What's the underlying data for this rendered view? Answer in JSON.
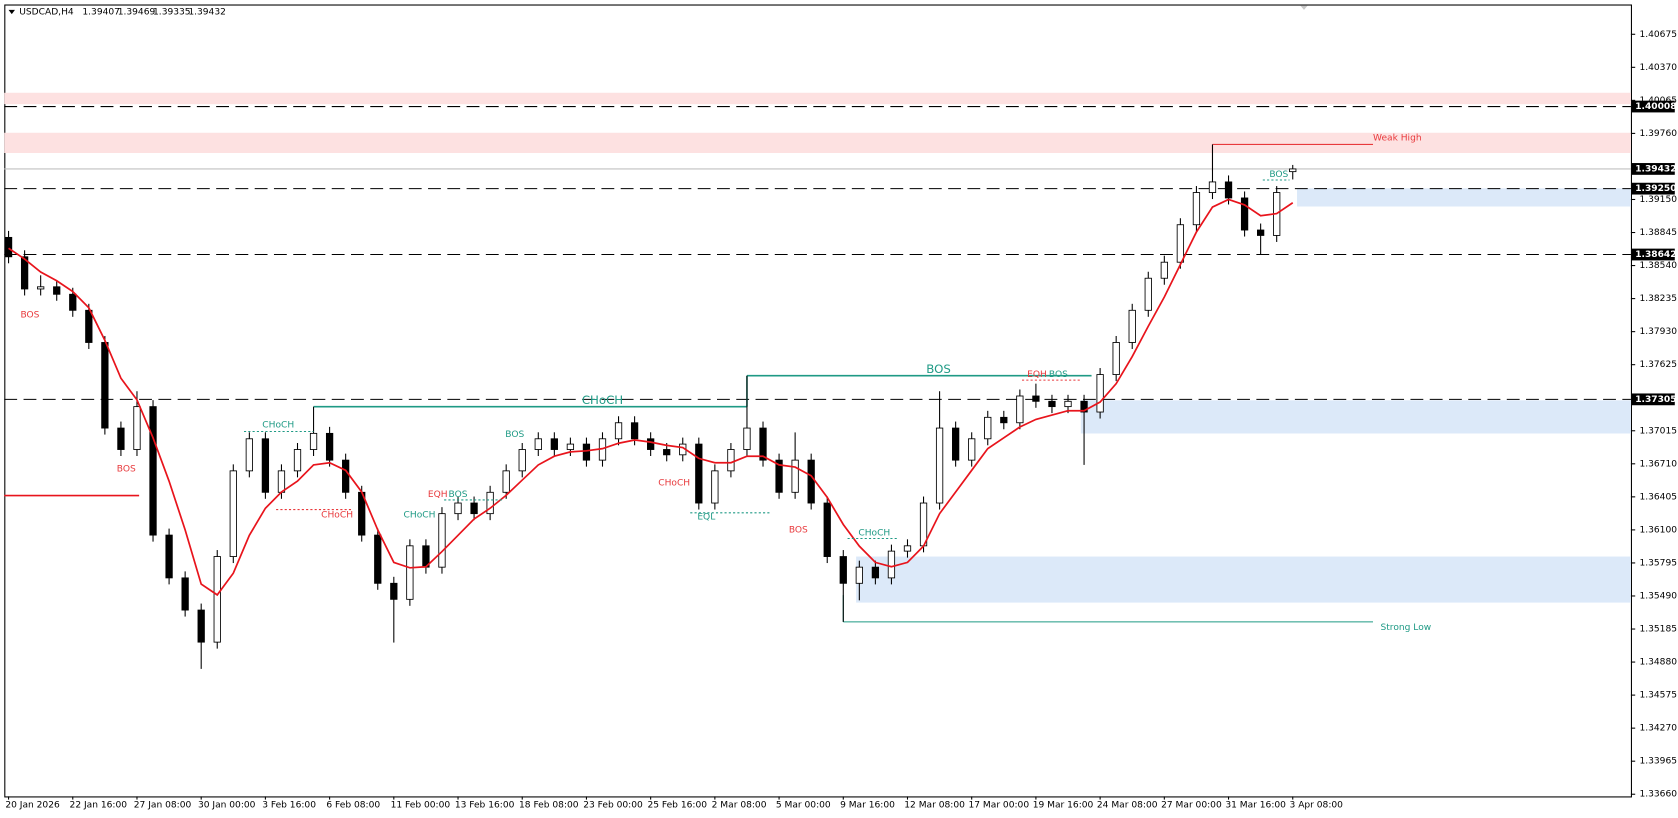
{
  "chart_data": {
    "type": "candlestick",
    "symbol": "USDCAD,H4",
    "categories": [
      "20 Jan 2026",
      null,
      null,
      null,
      "22 Jan 16:00",
      null,
      null,
      null,
      "27 Jan 08:00",
      null,
      null,
      null,
      "30 Jan 00:00",
      null,
      null,
      null,
      "3 Feb 16:00",
      null,
      null,
      null,
      "6 Feb 08:00",
      null,
      null,
      null,
      "11 Feb 00:00",
      null,
      null,
      null,
      "13 Feb 16:00",
      null,
      null,
      null,
      "18 Feb 08:00",
      null,
      null,
      null,
      "23 Feb 00:00",
      null,
      null,
      null,
      "25 Feb 16:00",
      null,
      null,
      null,
      "2 Mar 08:00",
      null,
      null,
      null,
      "5 Mar 00:00",
      null,
      null,
      null,
      "9 Mar 16:00",
      null,
      null,
      null,
      "12 Mar 08:00",
      null,
      null,
      null,
      "17 Mar 00:00",
      null,
      null,
      null,
      "19 Mar 16:00",
      null,
      null,
      null,
      "24 Mar 08:00",
      null,
      null,
      null,
      "27 Mar 00:00",
      null,
      null,
      null,
      "31 Mar 16:00",
      null,
      null,
      null,
      "3 Apr 08:00"
    ],
    "open": [
      1.388,
      1.38621,
      1.38324,
      1.38344,
      1.38275,
      1.38127,
      1.3783,
      1.3704,
      1.36842,
      1.37238,
      1.36052,
      1.35657,
      1.3536,
      1.35064,
      1.35854,
      1.36645,
      1.36941,
      1.36447,
      1.36645,
      1.36842,
      1.36991,
      1.36744,
      1.36447,
      1.36052,
      1.35607,
      1.35459,
      1.35953,
      1.35756,
      1.3625,
      1.36348,
      1.3625,
      1.36447,
      1.36645,
      1.36842,
      1.36941,
      1.36842,
      1.36892,
      1.36744,
      1.36941,
      1.37089,
      1.36941,
      1.36842,
      1.36793,
      1.36892,
      1.36348,
      1.36645,
      1.36842,
      1.3704,
      1.36744,
      1.36447,
      1.36744,
      1.36348,
      1.35854,
      1.35607,
      1.35756,
      1.35657,
      1.35904,
      1.35953,
      1.36348,
      1.3704,
      1.36744,
      1.36941,
      1.37139,
      1.37089,
      1.37336,
      1.37287,
      1.37238,
      1.37287,
      1.37188,
      1.37534,
      1.3783,
      1.38127,
      1.38423,
      1.38571,
      1.38917,
      1.39214,
      1.39312,
      1.39164,
      1.38868,
      1.38818,
      1.39407
    ],
    "high": [
      1.3886,
      1.38681,
      1.3845,
      1.38404,
      1.38335,
      1.38187,
      1.3789,
      1.371,
      1.3738,
      1.37298,
      1.36112,
      1.35717,
      1.3542,
      1.35914,
      1.36705,
      1.37001,
      1.37001,
      1.36705,
      1.36902,
      1.37237,
      1.37051,
      1.36804,
      1.36507,
      1.36112,
      1.35667,
      1.36013,
      1.36013,
      1.3631,
      1.36408,
      1.36408,
      1.36507,
      1.36705,
      1.36902,
      1.37001,
      1.37001,
      1.36952,
      1.36952,
      1.37001,
      1.37149,
      1.37149,
      1.37001,
      1.36902,
      1.36952,
      1.36952,
      1.36705,
      1.36902,
      1.37523,
      1.371,
      1.36804,
      1.37,
      1.36804,
      1.36408,
      1.35914,
      1.35816,
      1.35816,
      1.35964,
      1.36013,
      1.36408,
      1.3738,
      1.371,
      1.37001,
      1.37199,
      1.37199,
      1.37396,
      1.3745,
      1.37347,
      1.37347,
      1.37347,
      1.37594,
      1.3789,
      1.38187,
      1.38483,
      1.38631,
      1.38977,
      1.39274,
      1.39658,
      1.39372,
      1.39224,
      1.38928,
      1.39274,
      1.39469
    ],
    "low": [
      1.38561,
      1.38264,
      1.38264,
      1.38215,
      1.38067,
      1.3777,
      1.3698,
      1.36782,
      1.36782,
      1.35992,
      1.35597,
      1.353,
      1.34817,
      1.35004,
      1.35794,
      1.36585,
      1.36387,
      1.36387,
      1.36585,
      1.36782,
      1.36684,
      1.36387,
      1.35992,
      1.35547,
      1.3506,
      1.35399,
      1.35696,
      1.35696,
      1.3619,
      1.3619,
      1.3619,
      1.36387,
      1.36585,
      1.36782,
      1.36782,
      1.36782,
      1.36684,
      1.36684,
      1.36881,
      1.36881,
      1.36782,
      1.36733,
      1.36733,
      1.36288,
      1.36288,
      1.36585,
      1.36782,
      1.36684,
      1.36387,
      1.36387,
      1.36288,
      1.35794,
      1.35251,
      1.3545,
      1.35597,
      1.35597,
      1.35844,
      1.35893,
      1.36288,
      1.36684,
      1.36684,
      1.36881,
      1.37029,
      1.37029,
      1.37227,
      1.37178,
      1.37178,
      1.367,
      1.37128,
      1.37474,
      1.3777,
      1.38067,
      1.38363,
      1.38511,
      1.38857,
      1.39154,
      1.39104,
      1.38808,
      1.38642,
      1.38758,
      1.39335
    ],
    "close": [
      1.38621,
      1.38324,
      1.38344,
      1.38275,
      1.38127,
      1.3783,
      1.3704,
      1.36842,
      1.37238,
      1.36052,
      1.35657,
      1.3536,
      1.35064,
      1.35854,
      1.36645,
      1.36941,
      1.36447,
      1.36645,
      1.36842,
      1.36991,
      1.36744,
      1.36447,
      1.36052,
      1.35607,
      1.35459,
      1.35953,
      1.35756,
      1.3625,
      1.36348,
      1.3625,
      1.36447,
      1.36645,
      1.36842,
      1.36941,
      1.36842,
      1.36892,
      1.36744,
      1.36941,
      1.37089,
      1.36941,
      1.36842,
      1.36793,
      1.36892,
      1.36348,
      1.36645,
      1.36842,
      1.3704,
      1.36744,
      1.36447,
      1.36744,
      1.36348,
      1.35854,
      1.35607,
      1.35756,
      1.35657,
      1.35904,
      1.35953,
      1.36348,
      1.3704,
      1.36744,
      1.36941,
      1.37139,
      1.37089,
      1.37336,
      1.37287,
      1.37238,
      1.37287,
      1.37188,
      1.37534,
      1.3783,
      1.38127,
      1.38423,
      1.38571,
      1.38917,
      1.39214,
      1.39312,
      1.39164,
      1.38868,
      1.38818,
      1.39214,
      1.39432
    ],
    "color": "#000000",
    "up_fill": "#ffffff",
    "down_fill": "#000000",
    "ma": {
      "color": "#e8141c",
      "values": [
        1.387,
        1.386,
        1.3848,
        1.384,
        1.383,
        1.3815,
        1.3785,
        1.375,
        1.373,
        1.3695,
        1.3655,
        1.361,
        1.356,
        1.355,
        1.357,
        1.3605,
        1.363,
        1.3645,
        1.3655,
        1.367,
        1.3672,
        1.3665,
        1.3645,
        1.361,
        1.358,
        1.3575,
        1.3576,
        1.359,
        1.3605,
        1.362,
        1.363,
        1.3642,
        1.3656,
        1.367,
        1.3678,
        1.3682,
        1.3683,
        1.3685,
        1.369,
        1.3693,
        1.3691,
        1.3688,
        1.3686,
        1.3676,
        1.3672,
        1.3672,
        1.3678,
        1.3678,
        1.367,
        1.3668,
        1.366,
        1.364,
        1.3615,
        1.3595,
        1.358,
        1.3576,
        1.358,
        1.3595,
        1.3625,
        1.3645,
        1.3665,
        1.3685,
        1.3695,
        1.3705,
        1.3712,
        1.3716,
        1.372,
        1.372,
        1.3728,
        1.3745,
        1.377,
        1.3798,
        1.3825,
        1.3855,
        1.3885,
        1.3908,
        1.3915,
        1.391,
        1.39,
        1.3902,
        1.3912
      ]
    },
    "ylim": [
      1.3364,
      1.4095
    ],
    "yticks": [
      1.40675,
      {
        "value": 1.4037,
        "label": "1.40370"
      },
      1.40065,
      {
        "value": 1.3976,
        "label": "1.39760"
      },
      {
        "value": 1.3915,
        "label": "1.39150"
      },
      1.38845,
      {
        "value": 1.3854,
        "label": "1.38540"
      },
      1.38235,
      {
        "value": 1.3793,
        "label": "1.37930"
      },
      1.37625,
      1.37015,
      {
        "value": 1.3671,
        "label": "1.36710"
      },
      1.36405,
      {
        "value": 1.361,
        "label": "1.36100"
      },
      1.35795,
      {
        "value": 1.3549,
        "label": "1.35490"
      },
      1.35185,
      {
        "value": 1.3488,
        "label": "1.34880"
      },
      1.34575,
      {
        "value": 1.3427,
        "label": "1.34270"
      },
      1.33965,
      {
        "value": 1.3366,
        "label": "1.33660"
      }
    ],
    "levels": [
      1.40008,
      {
        "value": 1.3925,
        "label": "1.39250"
      },
      1.38642,
      1.37305
    ],
    "current_color": "#c0c0c0",
    "zones": [
      {
        "low": 1.4003,
        "high": 1.40135,
        "color": "#fde1e1"
      },
      {
        "low": 1.39579,
        "high": 1.39766,
        "color": "#fde1e1"
      },
      {
        "low": 1.39085,
        "high": 1.39253,
        "color": "#dce9f9"
      },
      {
        "low": 1.3699,
        "high": 1.37296,
        "color": "#dce9f9"
      },
      {
        "low": 1.35429,
        "high": 1.35854,
        "color": "#dce9f9"
      }
    ],
    "hlines": [
      {
        "value": 1.36417,
        "color": "#e8141c"
      }
    ],
    "bull_color": "#1f9a85",
    "bear_color": "#e8393c",
    "annotations": [
      {
        "text": "BOS",
        "color": "#e8393c"
      },
      {
        "text": "BOS",
        "color": "#e8393c"
      },
      {
        "text": "CHoCH",
        "color": "#1f9a85"
      },
      {
        "text": "CHoCH",
        "color": "#e8393c"
      },
      {
        "text": "CHoCH",
        "color": "#1f9a85"
      },
      {
        "text": "EQH",
        "color": "#e8393c"
      },
      {
        "text": "BOS",
        "color": "#1f9a85"
      },
      {
        "text": "BOS",
        "color": "#1f9a85"
      },
      {
        "text": "CHoCH",
        "color": "#1f9a85"
      },
      {
        "text": "CHoCH",
        "color": "#e8393c"
      },
      {
        "text": "EQL",
        "color": "#1f9a85"
      },
      {
        "text": "BOS",
        "color": "#e8393c"
      },
      {
        "text": "CHoCH",
        "color": "#1f9a85"
      },
      {
        "text": "BOS",
        "color": "#1f9a85"
      },
      {
        "text": "EQH",
        "color": "#e8393c"
      },
      {
        "text": "BOS",
        "color": "#1f9a85"
      },
      {
        "text": "BOS",
        "color": "#1f9a85"
      },
      {
        "text": "Weak High",
        "color": "#e8393c"
      },
      {
        "text": "Strong Low",
        "color": "#1f9a85"
      }
    ],
    "grid": false
  }
}
